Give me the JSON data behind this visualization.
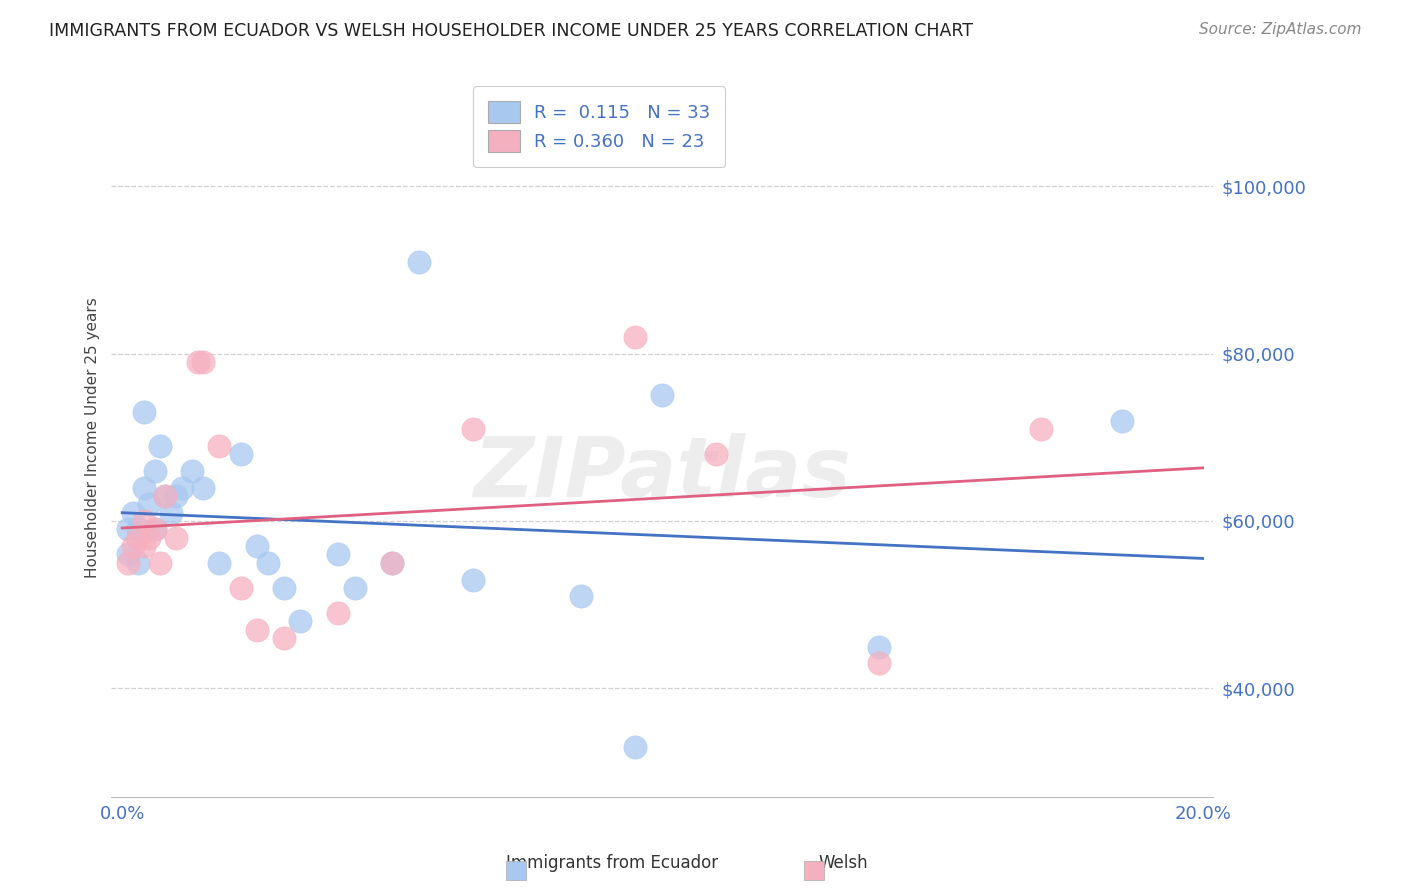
{
  "title": "IMMIGRANTS FROM ECUADOR VS WELSH HOUSEHOLDER INCOME UNDER 25 YEARS CORRELATION CHART",
  "source": "Source: ZipAtlas.com",
  "ylabel": "Householder Income Under 25 years",
  "xlim": [
    -0.002,
    0.202
  ],
  "ylim": [
    27000,
    113000
  ],
  "yticks": [
    40000,
    60000,
    80000,
    100000
  ],
  "ytick_labels": [
    "$40,000",
    "$60,000",
    "$80,000",
    "$100,000"
  ],
  "xticks": [
    0.0,
    0.05,
    0.1,
    0.15,
    0.2
  ],
  "xtick_labels": [
    "0.0%",
    "",
    "",
    "",
    "20.0%"
  ],
  "ecuador_R": 0.115,
  "ecuador_N": 33,
  "welsh_R": 0.36,
  "welsh_N": 23,
  "ecuador_color": "#a8c8f0",
  "welsh_color": "#f5b0c0",
  "ecuador_line_color": "#4472c4",
  "welsh_line_color": "#e06080",
  "text_blue": "#4472c4",
  "text_green": "#33aa33",
  "background_color": "#ffffff",
  "grid_color": "#d0d0d0",
  "title_color": "#222222",
  "watermark": "ZIPatlas",
  "ecuador_x": [
    0.001,
    0.001,
    0.002,
    0.003,
    0.003,
    0.004,
    0.004,
    0.005,
    0.006,
    0.006,
    0.007,
    0.008,
    0.009,
    0.01,
    0.011,
    0.013,
    0.015,
    0.018,
    0.022,
    0.025,
    0.027,
    0.03,
    0.033,
    0.04,
    0.043,
    0.05,
    0.055,
    0.065,
    0.085,
    0.095,
    0.1,
    0.14,
    0.185
  ],
  "ecuador_y": [
    56000,
    59000,
    61000,
    59000,
    55000,
    73000,
    64000,
    62000,
    59000,
    66000,
    69000,
    63000,
    61000,
    63000,
    64000,
    66000,
    64000,
    55000,
    68000,
    57000,
    55000,
    52000,
    48000,
    56000,
    52000,
    55000,
    91000,
    53000,
    51000,
    33000,
    75000,
    45000,
    72000
  ],
  "welsh_x": [
    0.001,
    0.002,
    0.003,
    0.004,
    0.004,
    0.005,
    0.006,
    0.007,
    0.008,
    0.01,
    0.014,
    0.015,
    0.018,
    0.022,
    0.025,
    0.03,
    0.04,
    0.05,
    0.065,
    0.095,
    0.11,
    0.14,
    0.17
  ],
  "welsh_y": [
    55000,
    57000,
    58000,
    60000,
    57000,
    58000,
    59000,
    55000,
    63000,
    58000,
    79000,
    79000,
    69000,
    52000,
    47000,
    46000,
    49000,
    55000,
    71000,
    82000,
    68000,
    43000,
    71000
  ],
  "line_x_start": 0.0,
  "line_x_end": 0.2
}
